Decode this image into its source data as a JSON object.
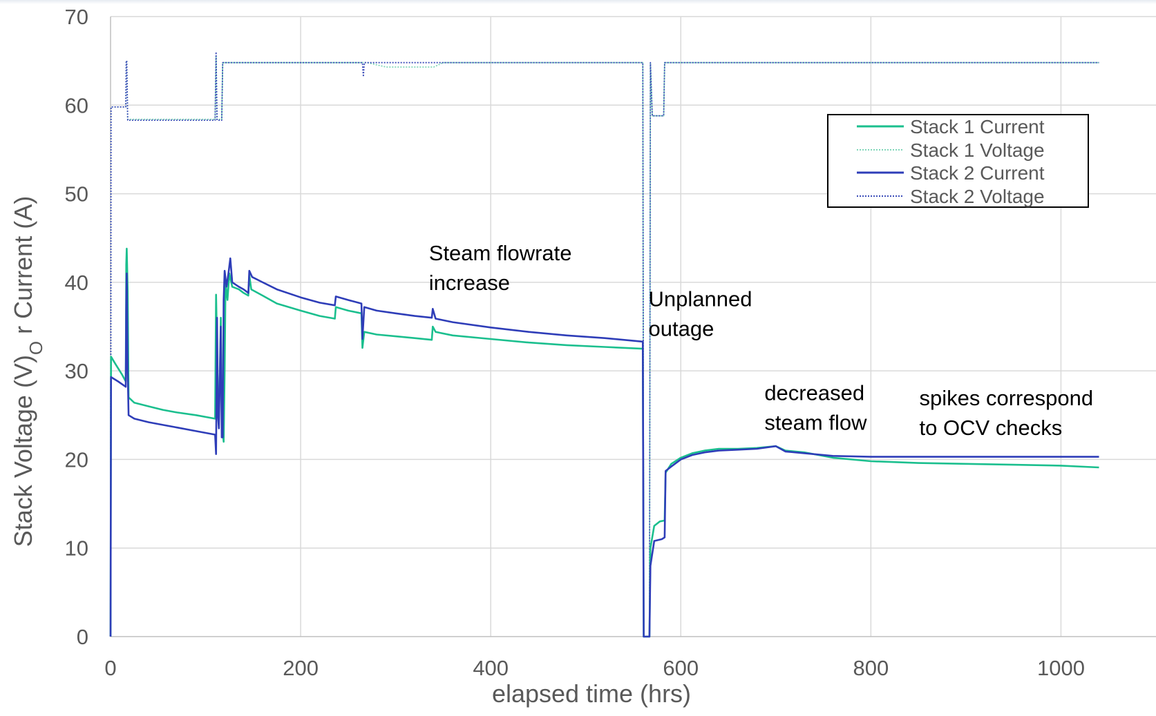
{
  "chart_data": {
    "type": "line",
    "xlabel": "elapsed time (hrs)",
    "ylabel_parts": [
      "Stack Voltage (V)",
      "O",
      " r Current (A)"
    ],
    "xlim": [
      0,
      1100
    ],
    "ylim": [
      0,
      70
    ],
    "x_ticks": [
      0,
      200,
      400,
      600,
      800,
      1000
    ],
    "y_ticks": [
      0,
      10,
      20,
      30,
      40,
      50,
      60,
      70
    ],
    "grid": true,
    "legend_position": "upper-right",
    "series": [
      {
        "name": "Stack 1 Current",
        "color": "#1bbf8e",
        "style": "solid",
        "points": [
          [
            0,
            0
          ],
          [
            0.5,
            31.6
          ],
          [
            5,
            30.8
          ],
          [
            12,
            29.6
          ],
          [
            16,
            28.8
          ],
          [
            16.5,
            42
          ],
          [
            17,
            43.8
          ],
          [
            18,
            39
          ],
          [
            19,
            27
          ],
          [
            25,
            26.4
          ],
          [
            40,
            26
          ],
          [
            55,
            25.6
          ],
          [
            70,
            25.3
          ],
          [
            90,
            25
          ],
          [
            110,
            24.6
          ],
          [
            111,
            38.6
          ],
          [
            112,
            33
          ],
          [
            113,
            26
          ],
          [
            114,
            24.5
          ],
          [
            116,
            36
          ],
          [
            117,
            24
          ],
          [
            118,
            23
          ],
          [
            119,
            22
          ],
          [
            120,
            30
          ],
          [
            121,
            40
          ],
          [
            123,
            38
          ],
          [
            125,
            41
          ],
          [
            127,
            40
          ],
          [
            128,
            39.5
          ],
          [
            135,
            39.2
          ],
          [
            140,
            38.8
          ],
          [
            145,
            38.5
          ],
          [
            146,
            40.8
          ],
          [
            148,
            39.2
          ],
          [
            160,
            38.5
          ],
          [
            175,
            37.6
          ],
          [
            200,
            36.8
          ],
          [
            220,
            36.2
          ],
          [
            236,
            35.9
          ],
          [
            237,
            37.2
          ],
          [
            250,
            36.8
          ],
          [
            264,
            36.5
          ],
          [
            265,
            32.6
          ],
          [
            267,
            34.4
          ],
          [
            280,
            34.1
          ],
          [
            300,
            33.9
          ],
          [
            320,
            33.7
          ],
          [
            338,
            33.5
          ],
          [
            339,
            35
          ],
          [
            342,
            34.4
          ],
          [
            360,
            34
          ],
          [
            400,
            33.6
          ],
          [
            440,
            33.2
          ],
          [
            480,
            32.9
          ],
          [
            520,
            32.7
          ],
          [
            560,
            32.5
          ],
          [
            561,
            0
          ],
          [
            567,
            0
          ],
          [
            568,
            10
          ],
          [
            572,
            12.5
          ],
          [
            578,
            13
          ],
          [
            583,
            13.1
          ],
          [
            584,
            18.5
          ],
          [
            590,
            19.5
          ],
          [
            600,
            20.2
          ],
          [
            612,
            20.7
          ],
          [
            625,
            21
          ],
          [
            640,
            21.2
          ],
          [
            660,
            21.2
          ],
          [
            680,
            21.3
          ],
          [
            700,
            21.5
          ],
          [
            710,
            21
          ],
          [
            730,
            20.8
          ],
          [
            760,
            20.2
          ],
          [
            800,
            19.8
          ],
          [
            850,
            19.6
          ],
          [
            900,
            19.5
          ],
          [
            950,
            19.4
          ],
          [
            1000,
            19.3
          ],
          [
            1040,
            19.1
          ]
        ]
      },
      {
        "name": "Stack 1 Voltage",
        "color": "#7fd6b8",
        "style": "dotted",
        "points": [
          [
            0,
            0
          ],
          [
            0.5,
            59.8
          ],
          [
            16,
            59.8
          ],
          [
            16.5,
            65
          ],
          [
            17,
            65
          ],
          [
            18,
            58.4
          ],
          [
            110,
            58.4
          ],
          [
            111,
            65.5
          ],
          [
            112,
            58.4
          ],
          [
            117,
            58.4
          ],
          [
            118,
            64.8
          ],
          [
            150,
            64.8
          ],
          [
            200,
            64.8
          ],
          [
            270,
            64.8
          ],
          [
            290,
            64.3
          ],
          [
            340,
            64.3
          ],
          [
            350,
            64.8
          ],
          [
            560,
            64.8
          ],
          [
            561,
            0
          ],
          [
            567,
            0
          ],
          [
            568,
            64.8
          ],
          [
            570,
            58.8
          ],
          [
            582,
            58.8
          ],
          [
            583,
            64.8
          ],
          [
            1040,
            64.8
          ]
        ]
      },
      {
        "name": "Stack 2 Current",
        "color": "#2e3db8",
        "style": "solid",
        "points": [
          [
            0,
            0
          ],
          [
            0.5,
            29.3
          ],
          [
            8,
            28.8
          ],
          [
            16,
            28.2
          ],
          [
            16.5,
            37
          ],
          [
            17,
            41
          ],
          [
            18,
            30
          ],
          [
            19,
            25
          ],
          [
            25,
            24.6
          ],
          [
            40,
            24.2
          ],
          [
            55,
            23.9
          ],
          [
            70,
            23.6
          ],
          [
            90,
            23.2
          ],
          [
            110,
            22.8
          ],
          [
            111,
            20.6
          ],
          [
            112,
            36
          ],
          [
            113,
            25
          ],
          [
            114,
            23.5
          ],
          [
            116,
            35
          ],
          [
            117,
            22.5
          ],
          [
            118,
            22.5
          ],
          [
            119,
            38
          ],
          [
            120,
            41.3
          ],
          [
            122,
            39.5
          ],
          [
            124,
            41
          ],
          [
            126,
            42.7
          ],
          [
            128,
            40
          ],
          [
            135,
            39.5
          ],
          [
            140,
            39.2
          ],
          [
            145,
            38.8
          ],
          [
            146,
            41.3
          ],
          [
            149,
            40.6
          ],
          [
            160,
            40
          ],
          [
            175,
            39.2
          ],
          [
            200,
            38.3
          ],
          [
            220,
            37.7
          ],
          [
            236,
            37.4
          ],
          [
            237,
            38.4
          ],
          [
            250,
            38
          ],
          [
            264,
            37.6
          ],
          [
            265,
            33.6
          ],
          [
            267,
            37.2
          ],
          [
            280,
            36.8
          ],
          [
            300,
            36.5
          ],
          [
            320,
            36.2
          ],
          [
            338,
            36
          ],
          [
            339,
            37
          ],
          [
            342,
            35.9
          ],
          [
            360,
            35.5
          ],
          [
            400,
            34.9
          ],
          [
            440,
            34.4
          ],
          [
            480,
            34
          ],
          [
            520,
            33.7
          ],
          [
            560,
            33.3
          ],
          [
            561,
            0
          ],
          [
            567,
            0
          ],
          [
            568,
            8
          ],
          [
            572,
            10.8
          ],
          [
            580,
            11
          ],
          [
            583,
            11.2
          ],
          [
            584,
            18.7
          ],
          [
            590,
            19.2
          ],
          [
            600,
            20
          ],
          [
            612,
            20.5
          ],
          [
            625,
            20.8
          ],
          [
            640,
            21
          ],
          [
            660,
            21.1
          ],
          [
            680,
            21.2
          ],
          [
            700,
            21.5
          ],
          [
            710,
            20.9
          ],
          [
            730,
            20.7
          ],
          [
            760,
            20.4
          ],
          [
            800,
            20.3
          ],
          [
            850,
            20.3
          ],
          [
            900,
            20.3
          ],
          [
            950,
            20.3
          ],
          [
            1000,
            20.3
          ],
          [
            1040,
            20.3
          ]
        ]
      },
      {
        "name": "Stack 2 Voltage",
        "color": "#3a4bb8",
        "style": "dotted",
        "points": [
          [
            0,
            0
          ],
          [
            0.5,
            59.8
          ],
          [
            16,
            59.8
          ],
          [
            16.5,
            65
          ],
          [
            17,
            65
          ],
          [
            18,
            58.3
          ],
          [
            110,
            58.3
          ],
          [
            111,
            66
          ],
          [
            112,
            58.3
          ],
          [
            117,
            58.3
          ],
          [
            118,
            64.8
          ],
          [
            150,
            64.8
          ],
          [
            200,
            64.8
          ],
          [
            265,
            64.8
          ],
          [
            266,
            63.2
          ],
          [
            267,
            64.8
          ],
          [
            560,
            64.8
          ],
          [
            561,
            0
          ],
          [
            567,
            0
          ],
          [
            568,
            64.8
          ],
          [
            570,
            58.8
          ],
          [
            582,
            58.8
          ],
          [
            583,
            64.8
          ],
          [
            1040,
            64.8
          ]
        ]
      }
    ],
    "annotations": [
      {
        "lines": [
          "Steam flowrate",
          "increase"
        ],
        "x": 335,
        "y": 42.5
      },
      {
        "lines": [
          "Unplanned",
          "outage"
        ],
        "x": 566,
        "y": 37.3
      },
      {
        "lines": [
          "decreased",
          "steam flow"
        ],
        "x": 688,
        "y": 26.7
      },
      {
        "lines": [
          "spikes correspond",
          "to OCV checks"
        ],
        "x": 851,
        "y": 26.1
      }
    ]
  }
}
